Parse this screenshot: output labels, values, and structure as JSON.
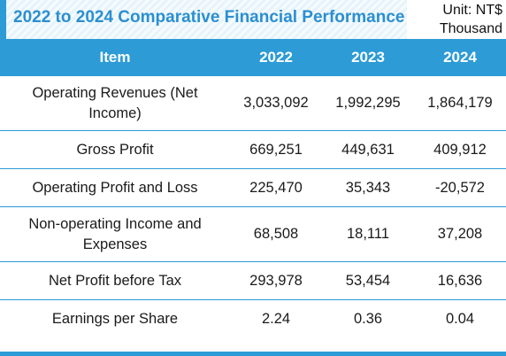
{
  "title": "2022 to 2024 Comparative Financial Performance",
  "unit": "Unit: NT$ Thousand",
  "table": {
    "headers": [
      "Item",
      "2022",
      "2023",
      "2024"
    ],
    "rows": [
      {
        "item": "Operating Revenues (Net Income)",
        "y2022": "3,033,092",
        "y2023": "1,992,295",
        "y2024": "1,864,179"
      },
      {
        "item": "Gross Profit",
        "y2022": "669,251",
        "y2023": "449,631",
        "y2024": "409,912"
      },
      {
        "item": "Operating Profit and Loss",
        "y2022": "225,470",
        "y2023": "35,343",
        "y2024": "-20,572"
      },
      {
        "item": "Non-operating Income and Expenses",
        "y2022": "68,508",
        "y2023": "18,111",
        "y2024": "37,208"
      },
      {
        "item": "Net Profit before Tax",
        "y2022": "293,978",
        "y2023": "53,454",
        "y2024": "16,636"
      },
      {
        "item": "Earnings per Share",
        "y2022": "2.24",
        "y2023": "0.36",
        "y2024": "0.04"
      }
    ]
  },
  "colors": {
    "accent": "#2c9bd6",
    "title_text": "#2a8fd0",
    "title_background": "#e6f3fb"
  }
}
